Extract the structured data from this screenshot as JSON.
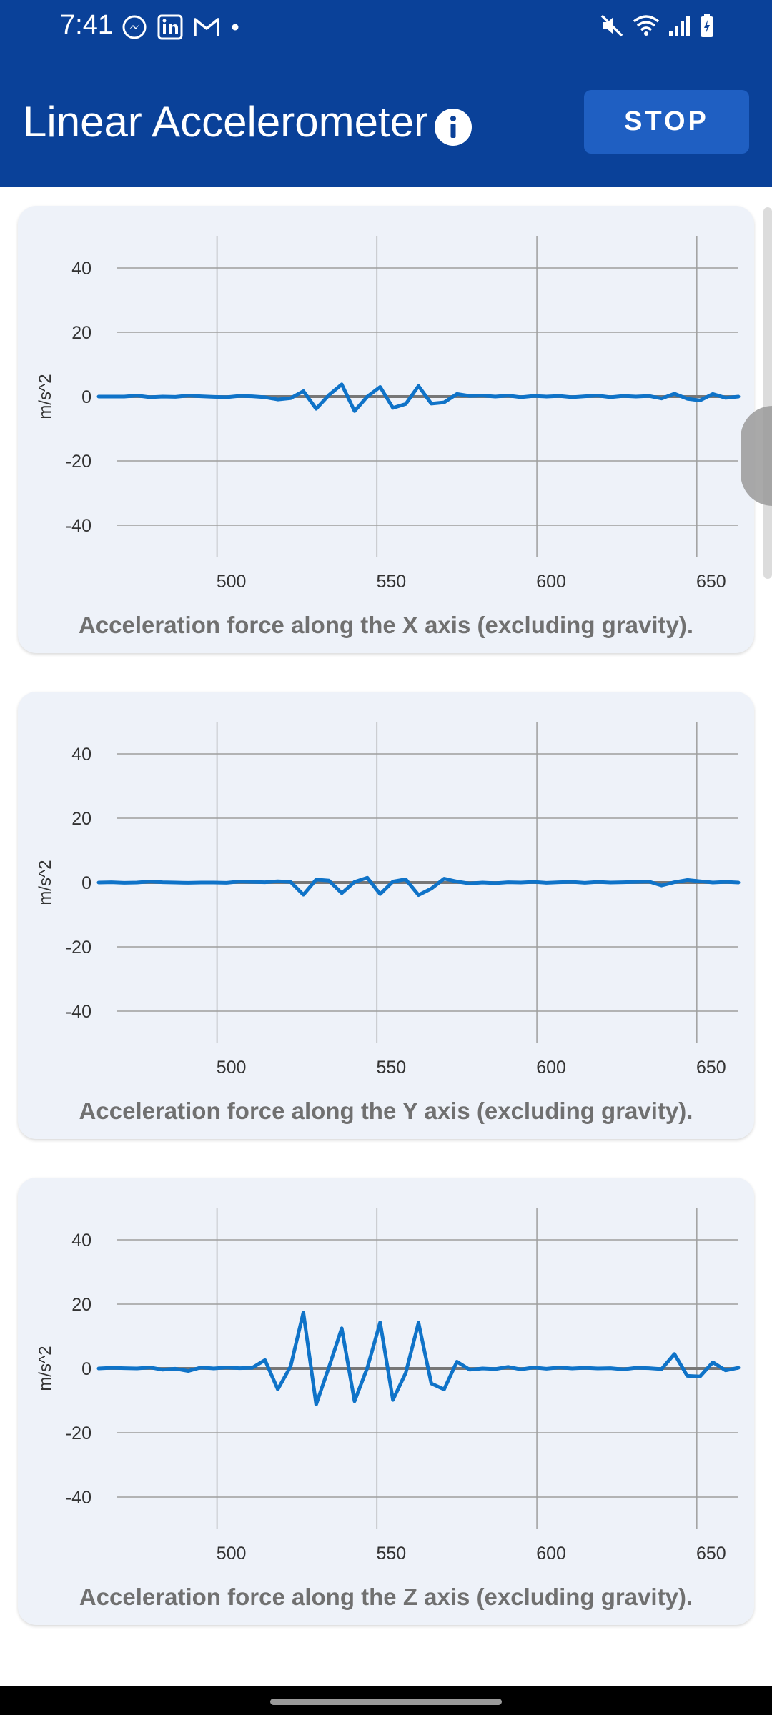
{
  "status": {
    "time": "7:41",
    "icons": [
      "messenger-icon",
      "linkedin-icon",
      "gmail-icon",
      "dot-icon",
      "mute-icon",
      "wifi-icon",
      "signal-icon",
      "battery-icon"
    ]
  },
  "header": {
    "title": "Linear Accelerometer",
    "stop_label": "STOP",
    "bg": "#0a4199"
  },
  "charts": [
    {
      "caption": "Acceleration force along the X axis (excluding gravity).",
      "ylabel": "m/s^2",
      "y_ticks": [
        "40",
        "20",
        "0",
        "-20",
        "-40"
      ],
      "x_ticks": [
        "500",
        "550",
        "600",
        "650"
      ],
      "chart_data": {
        "type": "line",
        "xlim": [
          463,
          663
        ],
        "ylim": [
          -50,
          50
        ],
        "x": [
          463,
          467,
          471,
          475,
          479,
          483,
          487,
          491,
          495,
          499,
          503,
          507,
          511,
          515,
          519,
          523,
          527,
          531,
          535,
          539,
          543,
          547,
          551,
          555,
          559,
          563,
          567,
          571,
          575,
          579,
          583,
          587,
          591,
          595,
          599,
          603,
          607,
          611,
          615,
          619,
          623,
          627,
          631,
          635,
          639,
          643,
          647,
          651,
          655,
          659,
          663
        ],
        "values": [
          0,
          0,
          0,
          0.3,
          -0.2,
          0,
          -0.1,
          0.3,
          0.1,
          -0.1,
          -0.2,
          0.2,
          0.1,
          -0.2,
          -0.9,
          -0.5,
          1.7,
          -3.8,
          0.5,
          3.8,
          -4.5,
          0,
          3,
          -3.5,
          -2.3,
          3.3,
          -2.2,
          -1.8,
          0.8,
          0.2,
          0.3,
          0,
          0.3,
          -0.2,
          0.2,
          0,
          0.2,
          -0.2,
          0.1,
          0.3,
          -0.2,
          0.2,
          0,
          0.2,
          -0.6,
          0.9,
          -0.7,
          -1.2,
          0.8,
          -0.4,
          0
        ]
      }
    },
    {
      "caption": "Acceleration force along the Y axis (excluding gravity).",
      "ylabel": "m/s^2",
      "y_ticks": [
        "40",
        "20",
        "0",
        "-20",
        "-40"
      ],
      "x_ticks": [
        "500",
        "550",
        "600",
        "650"
      ],
      "chart_data": {
        "type": "line",
        "xlim": [
          463,
          663
        ],
        "ylim": [
          -50,
          50
        ],
        "x": [
          463,
          467,
          471,
          475,
          479,
          483,
          487,
          491,
          495,
          499,
          503,
          507,
          511,
          515,
          519,
          523,
          527,
          531,
          535,
          539,
          543,
          547,
          551,
          555,
          559,
          563,
          567,
          571,
          575,
          579,
          583,
          587,
          591,
          595,
          599,
          603,
          607,
          611,
          615,
          619,
          623,
          627,
          631,
          635,
          639,
          643,
          647,
          651,
          655,
          659,
          663
        ],
        "values": [
          0,
          0.1,
          -0.1,
          0,
          0.3,
          0.1,
          0,
          -0.1,
          0,
          0,
          -0.1,
          0.3,
          0.2,
          0.1,
          0.4,
          0.2,
          -3.8,
          0.9,
          0.6,
          -3.3,
          0.2,
          1.5,
          -3.6,
          0.3,
          1,
          -3.9,
          -1.9,
          1.2,
          0.3,
          -0.3,
          0,
          -0.2,
          0.1,
          0,
          0.2,
          -0.1,
          0.1,
          0.2,
          -0.1,
          0.2,
          0,
          0.1,
          0.2,
          0.3,
          -0.9,
          0.1,
          0.8,
          0.4,
          0,
          0.2,
          0
        ]
      }
    },
    {
      "caption": "Acceleration force along the Z axis (excluding gravity).",
      "ylabel": "m/s^2",
      "y_ticks": [
        "40",
        "20",
        "0",
        "-20",
        "-40"
      ],
      "x_ticks": [
        "500",
        "550",
        "600",
        "650"
      ],
      "chart_data": {
        "type": "line",
        "xlim": [
          463,
          663
        ],
        "ylim": [
          -50,
          50
        ],
        "x": [
          463,
          467,
          471,
          475,
          479,
          483,
          487,
          491,
          495,
          499,
          503,
          507,
          511,
          515,
          519,
          523,
          527,
          531,
          535,
          539,
          543,
          547,
          551,
          555,
          559,
          563,
          567,
          571,
          575,
          579,
          583,
          587,
          591,
          595,
          599,
          603,
          607,
          611,
          615,
          619,
          623,
          627,
          631,
          635,
          639,
          643,
          647,
          651,
          655,
          659,
          663
        ],
        "values": [
          0,
          0.2,
          0.1,
          0,
          0.3,
          -0.4,
          -0.1,
          -0.8,
          0.3,
          0,
          0.3,
          0.1,
          0.2,
          2.6,
          -6.5,
          0.6,
          17.4,
          -11.2,
          0.4,
          12.5,
          -10.2,
          0.2,
          14.3,
          -9.8,
          -1.4,
          14.2,
          -4.7,
          -6.5,
          2.1,
          -0.4,
          0,
          -0.2,
          0.5,
          -0.3,
          0.3,
          -0.1,
          0.3,
          0,
          0.2,
          0,
          0.1,
          -0.3,
          0.2,
          0.1,
          -0.2,
          4.5,
          -2.3,
          -2.5,
          1.9,
          -0.6,
          0.2
        ]
      }
    }
  ],
  "colors": {
    "line": "#0f73c8",
    "zero_line": "#777777",
    "grid": "#9e9e9e",
    "card_bg": "#eef2f9"
  }
}
